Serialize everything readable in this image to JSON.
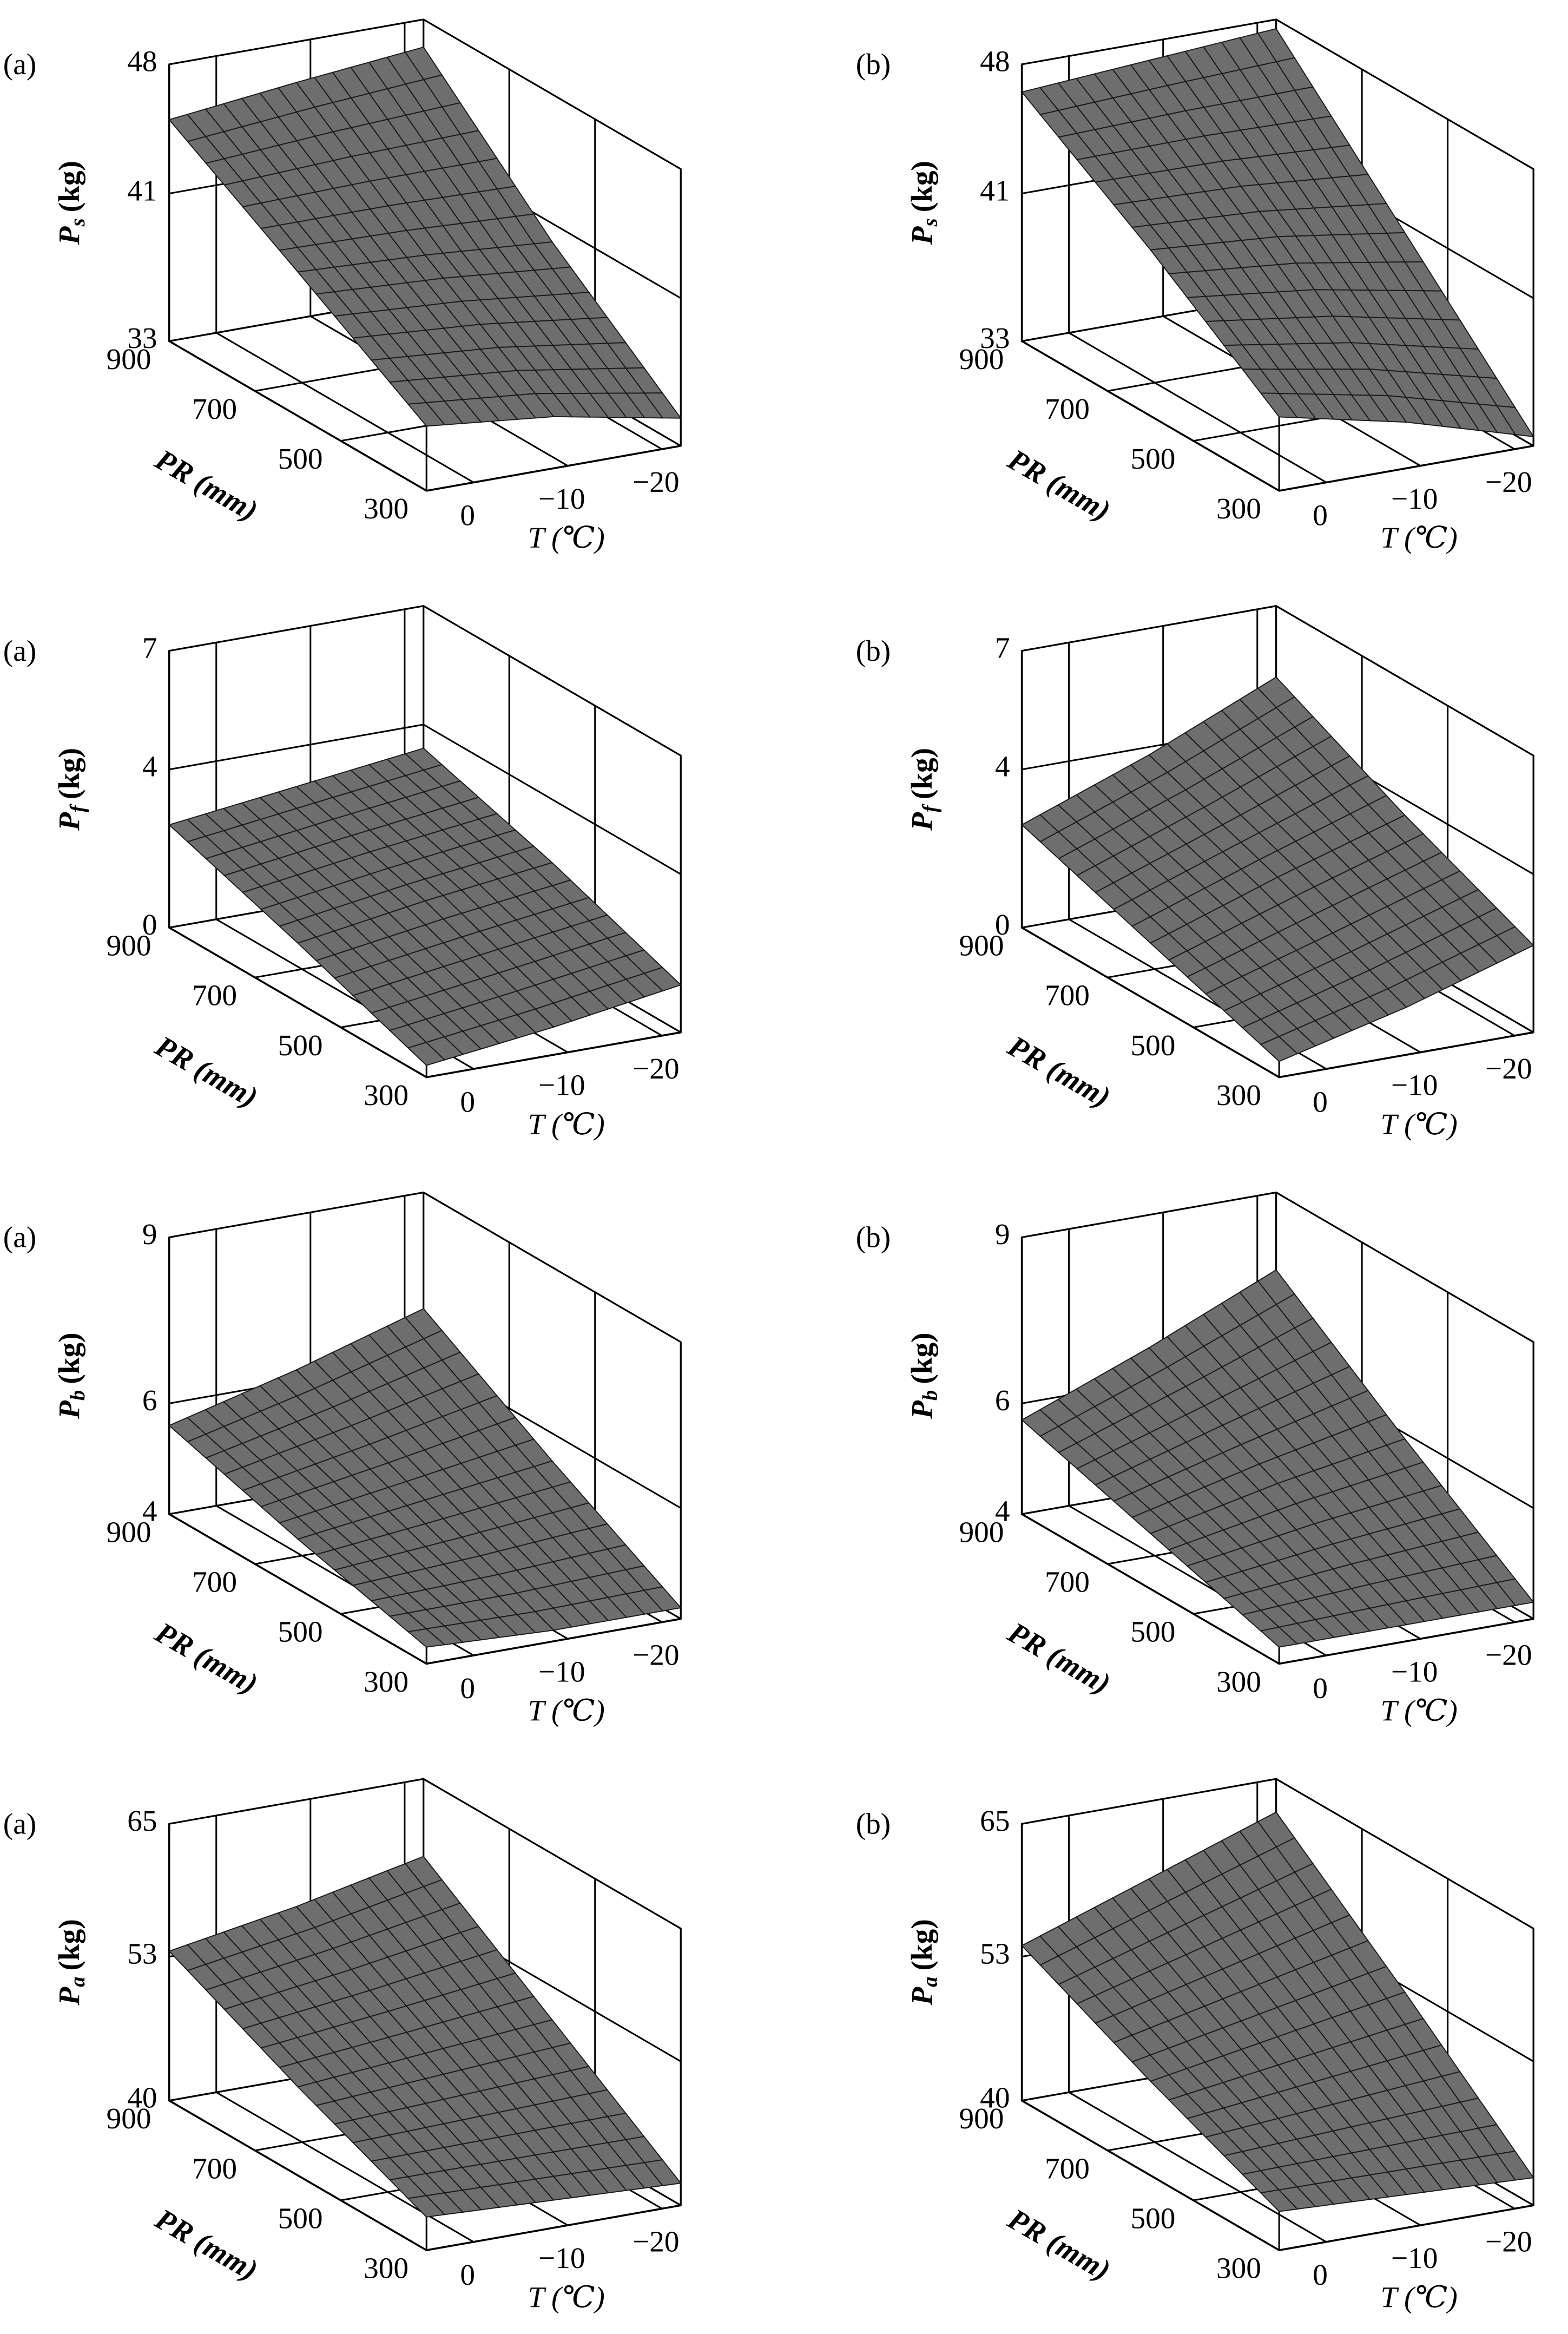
{
  "chart_data": [
    {
      "type": "surface",
      "panel": "(a)",
      "zlabel": "P",
      "zlabel_sub": "s",
      "zlabel_unit": "(kg)",
      "xlabel": "T (℃)",
      "ylabel": "PR (mm)",
      "x": [
        5,
        -8.5,
        -22
      ],
      "y": [
        300,
        600,
        900
      ],
      "z": [
        [
          36.5,
          35.8,
          34.5
        ],
        [
          40.8,
          40.5,
          40.0
        ],
        [
          45,
          45.8,
          46.5
        ]
      ],
      "xlim": [
        5,
        -22
      ],
      "ylim": [
        300,
        900
      ],
      "zlim": [
        33,
        48
      ],
      "xticks": [
        0,
        {
          "value": -10,
          "label": "−10"
        },
        {
          "value": -20,
          "label": "−20"
        }
      ],
      "yticks": [
        300,
        500,
        700,
        900
      ],
      "zticks": [
        33,
        41,
        48
      ],
      "color": "#6e6e6e"
    },
    {
      "type": "surface",
      "panel": "(b)",
      "zlabel": "P",
      "zlabel_sub": "s",
      "zlabel_unit": "(kg)",
      "xlabel": "T (℃)",
      "ylabel": "PR (mm)",
      "x": [
        5,
        -8.5,
        -22
      ],
      "y": [
        300,
        600,
        900
      ],
      "z": [
        [
          37,
          35.5,
          33.5
        ],
        [
          42,
          41.5,
          40.5
        ],
        [
          46.5,
          47,
          47.5
        ]
      ],
      "xlim": [
        5,
        -22
      ],
      "ylim": [
        300,
        900
      ],
      "zlim": [
        33,
        48
      ],
      "xticks": [
        0,
        {
          "value": -10,
          "label": "−10"
        },
        {
          "value": -20,
          "label": "−20"
        }
      ],
      "yticks": [
        300,
        500,
        700,
        900
      ],
      "zticks": [
        33,
        41,
        48
      ],
      "color": "#6e6e6e"
    },
    {
      "type": "surface",
      "panel": "(a)",
      "zlabel": "P",
      "zlabel_sub": "f",
      "zlabel_unit": "(kg)",
      "xlabel": "T (℃)",
      "ylabel": "PR (mm)",
      "x": [
        5,
        -8.5,
        -22
      ],
      "y": [
        300,
        600,
        900
      ],
      "z": [
        [
          0.3,
          0.7,
          1.2
        ],
        [
          1.5,
          2,
          2.4
        ],
        [
          2.6,
          3,
          3.4
        ]
      ],
      "xlim": [
        5,
        -22
      ],
      "ylim": [
        300,
        900
      ],
      "zlim": [
        0,
        7
      ],
      "xticks": [
        0,
        {
          "value": -10,
          "label": "−10"
        },
        {
          "value": -20,
          "label": "−20"
        }
      ],
      "yticks": [
        300,
        500,
        700,
        900
      ],
      "zticks": [
        0,
        4,
        7
      ],
      "color": "#6e6e6e"
    },
    {
      "type": "surface",
      "panel": "(b)",
      "zlabel": "P",
      "zlabel_sub": "f",
      "zlabel_unit": "(kg)",
      "xlabel": "T (℃)",
      "ylabel": "PR (mm)",
      "x": [
        5,
        -8.5,
        -22
      ],
      "y": [
        300,
        600,
        900
      ],
      "z": [
        [
          0.4,
          1.2,
          2.2
        ],
        [
          1.5,
          2.6,
          3.6
        ],
        [
          2.6,
          3.8,
          5.2
        ]
      ],
      "xlim": [
        5,
        -22
      ],
      "ylim": [
        300,
        900
      ],
      "zlim": [
        0,
        7
      ],
      "xticks": [
        0,
        {
          "value": -10,
          "label": "−10"
        },
        {
          "value": -20,
          "label": "−20"
        }
      ],
      "yticks": [
        300,
        500,
        700,
        900
      ],
      "zticks": [
        0,
        4,
        7
      ],
      "color": "#6e6e6e"
    },
    {
      "type": "surface",
      "panel": "(a)",
      "zlabel": "P",
      "zlabel_sub": "b",
      "zlabel_unit": "(kg)",
      "xlabel": "T (℃)",
      "ylabel": "PR (mm)",
      "x": [
        5,
        -8.5,
        -22
      ],
      "y": [
        300,
        600,
        900
      ],
      "z": [
        [
          4.3,
          4.2,
          4.2
        ],
        [
          4.9,
          5.2,
          5.5
        ],
        [
          5.6,
          6.2,
          6.9
        ]
      ],
      "xlim": [
        5,
        -22
      ],
      "ylim": [
        300,
        900
      ],
      "zlim": [
        4,
        9
      ],
      "xticks": [
        0,
        {
          "value": -10,
          "label": "−10"
        },
        {
          "value": -20,
          "label": "−20"
        }
      ],
      "yticks": [
        300,
        500,
        700,
        900
      ],
      "zticks": [
        4,
        6,
        9
      ],
      "color": "#6e6e6e"
    },
    {
      "type": "surface",
      "panel": "(b)",
      "zlabel": "P",
      "zlabel_sub": "b",
      "zlabel_unit": "(kg)",
      "xlabel": "T (℃)",
      "ylabel": "PR (mm)",
      "x": [
        5,
        -8.5,
        -22
      ],
      "y": [
        300,
        600,
        900
      ],
      "z": [
        [
          4.3,
          4.3,
          4.3
        ],
        [
          5.0,
          5.5,
          5.9
        ],
        [
          5.7,
          6.6,
          7.6
        ]
      ],
      "xlim": [
        5,
        -22
      ],
      "ylim": [
        300,
        900
      ],
      "zlim": [
        4,
        9
      ],
      "xticks": [
        0,
        {
          "value": -10,
          "label": "−10"
        },
        {
          "value": -20,
          "label": "−20"
        }
      ],
      "yticks": [
        300,
        500,
        700,
        900
      ],
      "zticks": [
        4,
        6,
        9
      ],
      "color": "#6e6e6e"
    },
    {
      "type": "surface",
      "panel": "(a)",
      "zlabel": "P",
      "zlabel_sub": "a",
      "zlabel_unit": "(kg)",
      "xlabel": "T (℃)",
      "ylabel": "PR (mm)",
      "x": [
        5,
        -8.5,
        -22
      ],
      "y": [
        300,
        600,
        900
      ],
      "z": [
        [
          43,
          42.5,
          42
        ],
        [
          48,
          49,
          50
        ],
        [
          53.5,
          55.5,
          58
        ]
      ],
      "xlim": [
        5,
        -22
      ],
      "ylim": [
        300,
        900
      ],
      "zlim": [
        40,
        65
      ],
      "xticks": [
        0,
        {
          "value": -10,
          "label": "−10"
        },
        {
          "value": -20,
          "label": "−20"
        }
      ],
      "yticks": [
        300,
        500,
        700,
        900
      ],
      "zticks": [
        40,
        53,
        65
      ],
      "color": "#6e6e6e"
    },
    {
      "type": "surface",
      "panel": "(b)",
      "zlabel": "P",
      "zlabel_sub": "a",
      "zlabel_unit": "(kg)",
      "xlabel": "T (℃)",
      "ylabel": "PR (mm)",
      "x": [
        5,
        -8.5,
        -22
      ],
      "y": [
        300,
        600,
        900
      ],
      "z": [
        [
          43.5,
          43,
          42.5
        ],
        [
          48.5,
          50.5,
          52.5
        ],
        [
          54,
          58,
          62
        ]
      ],
      "xlim": [
        5,
        -22
      ],
      "ylim": [
        300,
        900
      ],
      "zlim": [
        40,
        65
      ],
      "xticks": [
        0,
        {
          "value": -10,
          "label": "−10"
        },
        {
          "value": -20,
          "label": "−20"
        }
      ],
      "yticks": [
        300,
        500,
        700,
        900
      ],
      "zticks": [
        40,
        53,
        65
      ],
      "color": "#6e6e6e"
    }
  ]
}
